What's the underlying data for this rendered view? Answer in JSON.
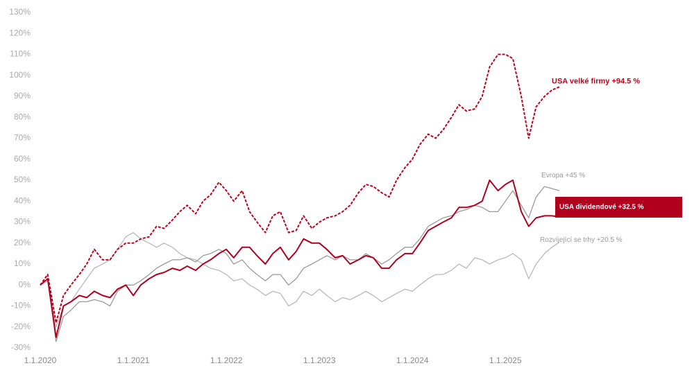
{
  "chart_data": {
    "type": "line",
    "x": [
      2020.0,
      2020.08,
      2020.17,
      2020.25,
      2020.33,
      2020.42,
      2020.5,
      2020.58,
      2020.67,
      2020.75,
      2020.83,
      2020.92,
      2021.0,
      2021.08,
      2021.17,
      2021.25,
      2021.33,
      2021.42,
      2021.5,
      2021.58,
      2021.67,
      2021.75,
      2021.83,
      2021.92,
      2022.0,
      2022.08,
      2022.17,
      2022.25,
      2022.33,
      2022.42,
      2022.5,
      2022.58,
      2022.67,
      2022.75,
      2022.83,
      2022.92,
      2023.0,
      2023.08,
      2023.17,
      2023.25,
      2023.33,
      2023.42,
      2023.5,
      2023.58,
      2023.67,
      2023.75,
      2023.83,
      2023.92,
      2024.0,
      2024.08,
      2024.17,
      2024.25,
      2024.33,
      2024.42,
      2024.5,
      2024.58,
      2024.67,
      2024.75,
      2024.83,
      2024.92,
      2025.0,
      2025.08,
      2025.17,
      2025.25,
      2025.33,
      2025.42,
      2025.5,
      2025.58
    ],
    "series": [
      {
        "name": "Rozvíjející se trhy +20.5 %",
        "color": "#b8b8b8",
        "dashed": false,
        "values": [
          0,
          2,
          -20,
          -10,
          -8,
          -2,
          3,
          8,
          10,
          12,
          17,
          23,
          25,
          22,
          20,
          18,
          20,
          18,
          15,
          13,
          12,
          10,
          8,
          7,
          5,
          2,
          3,
          0,
          -2,
          -5,
          -3,
          -4,
          -10,
          -8,
          -3,
          -5,
          -2,
          -5,
          -8,
          -6,
          -7,
          -5,
          -3,
          -5,
          -8,
          -6,
          -4,
          -2,
          -3,
          0,
          3,
          5,
          5,
          7,
          10,
          8,
          13,
          12,
          10,
          12,
          13,
          15,
          12,
          3,
          10,
          15,
          18,
          20.5
        ]
      },
      {
        "name": "Evropa +45 %",
        "color": "#9a9a9a",
        "dashed": false,
        "values": [
          0,
          3,
          -27,
          -15,
          -12,
          -8,
          -8,
          -7,
          -8,
          -10,
          -3,
          0,
          0,
          2,
          5,
          8,
          10,
          12,
          12,
          13,
          11,
          14,
          15,
          17,
          15,
          10,
          12,
          8,
          5,
          2,
          5,
          5,
          0,
          3,
          8,
          10,
          12,
          14,
          12,
          14,
          12,
          12,
          15,
          13,
          10,
          12,
          15,
          18,
          18,
          22,
          28,
          30,
          32,
          33,
          35,
          36,
          38,
          37,
          35,
          35,
          40,
          45,
          38,
          32,
          42,
          47,
          46,
          45
        ]
      },
      {
        "name": "USA dividendové +32.5 %",
        "color": "#b0001e",
        "dashed": false,
        "values": [
          0,
          3,
          -25,
          -10,
          -8,
          -5,
          -6,
          -3,
          -5,
          -6,
          -2,
          0,
          -5,
          0,
          3,
          5,
          6,
          8,
          7,
          9,
          7,
          10,
          12,
          15,
          17,
          13,
          18,
          18,
          14,
          10,
          15,
          18,
          12,
          16,
          22,
          20,
          20,
          17,
          13,
          14,
          10,
          12,
          14,
          13,
          8,
          8,
          12,
          15,
          15,
          20,
          26,
          28,
          30,
          32,
          37,
          37,
          38,
          40,
          50,
          45,
          48,
          50,
          35,
          28,
          32,
          33,
          33,
          32.5
        ]
      },
      {
        "name": "USA velké firmy +94.5 %",
        "color": "#c0001a",
        "dashed": true,
        "values": [
          0,
          5,
          -18,
          -5,
          0,
          5,
          10,
          17,
          12,
          12,
          17,
          20,
          20,
          22,
          23,
          28,
          27,
          31,
          35,
          38,
          34,
          40,
          43,
          49,
          45,
          40,
          45,
          35,
          30,
          25,
          33,
          35,
          25,
          26,
          33,
          27,
          30,
          32,
          33,
          35,
          38,
          44,
          48,
          47,
          44,
          42,
          50,
          56,
          60,
          67,
          72,
          70,
          74,
          80,
          86,
          83,
          84,
          90,
          104,
          110,
          110,
          108,
          90,
          70,
          85,
          90,
          93,
          94.5
        ]
      }
    ],
    "xlim": [
      2020,
      2026.9
    ],
    "xticks": [
      {
        "value": 2020,
        "label": "1.1.2020"
      },
      {
        "value": 2021,
        "label": "1.1.2021"
      },
      {
        "value": 2022,
        "label": "1.1.2022"
      },
      {
        "value": 2023,
        "label": "1.1.2023"
      },
      {
        "value": 2024,
        "label": "1.1.2024"
      },
      {
        "value": 2025,
        "label": "1.1.2025"
      }
    ],
    "ylim": [
      -30,
      130
    ],
    "yticks": [
      {
        "value": -30,
        "label": "-30%"
      },
      {
        "value": -20,
        "label": "-20%"
      },
      {
        "value": -10,
        "label": "-10%"
      },
      {
        "value": 0,
        "label": "0%"
      },
      {
        "value": 10,
        "label": "10%"
      },
      {
        "value": 20,
        "label": "20%"
      },
      {
        "value": 30,
        "label": "30%"
      },
      {
        "value": 40,
        "label": "40%"
      },
      {
        "value": 50,
        "label": "50%"
      },
      {
        "value": 60,
        "label": "60%"
      },
      {
        "value": 70,
        "label": "70%"
      },
      {
        "value": 80,
        "label": "80%"
      },
      {
        "value": 90,
        "label": "90%"
      },
      {
        "value": 100,
        "label": "100%"
      },
      {
        "value": 110,
        "label": "110%"
      },
      {
        "value": 120,
        "label": "120%"
      },
      {
        "value": 130,
        "label": "130%"
      }
    ],
    "grid": false
  }
}
